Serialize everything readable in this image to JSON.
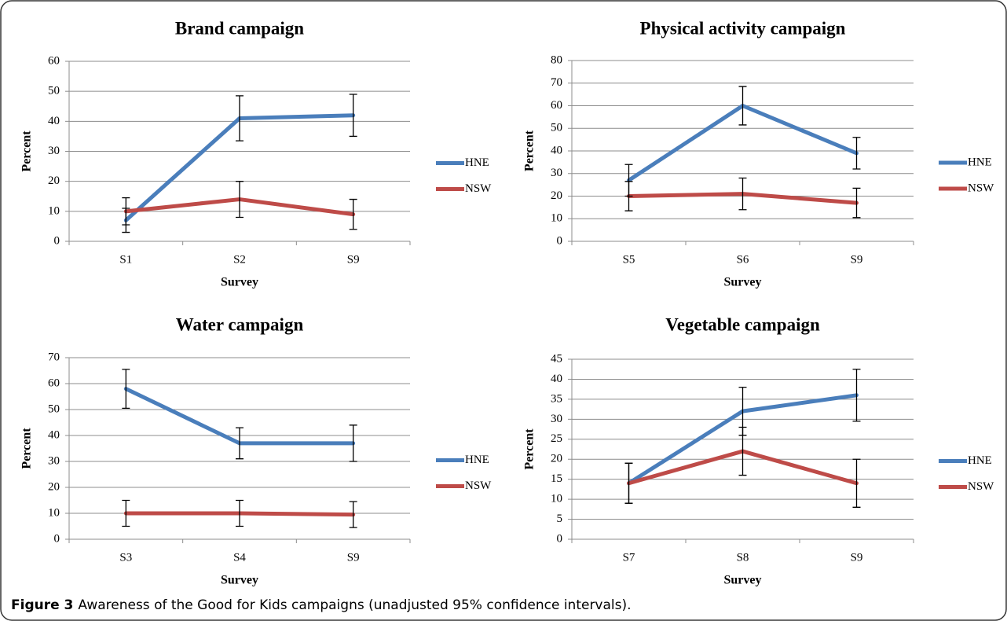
{
  "caption_label": "Figure 3",
  "caption_text": "Awareness of the Good for Kids campaigns (unadjusted 95% confidence intervals).",
  "chart_data": [
    {
      "type": "line",
      "title": "Brand campaign",
      "x_label": "Survey",
      "y_label": "Percent",
      "categories": [
        "S1",
        "S2",
        "S9"
      ],
      "ylim": [
        0,
        60
      ],
      "yticks": [
        0,
        10,
        20,
        30,
        40,
        50,
        60
      ],
      "grid": true,
      "series": [
        {
          "name": "HNE",
          "color": "#4a7ebb",
          "values": [
            7,
            41,
            42
          ],
          "errors": [
            4,
            7.5,
            7
          ]
        },
        {
          "name": "NSW",
          "color": "#be4b48",
          "values": [
            10,
            14,
            9
          ],
          "errors": [
            4.5,
            6,
            5
          ]
        }
      ]
    },
    {
      "type": "line",
      "title": "Physical activity campaign",
      "x_label": "Survey",
      "y_label": "Percent",
      "categories": [
        "S5",
        "S6",
        "S9"
      ],
      "ylim": [
        0,
        80
      ],
      "yticks": [
        0,
        10,
        20,
        30,
        40,
        50,
        60,
        70,
        80
      ],
      "grid": true,
      "series": [
        {
          "name": "HNE",
          "color": "#4a7ebb",
          "values": [
            27,
            60,
            39
          ],
          "errors": [
            7,
            8.5,
            7
          ]
        },
        {
          "name": "NSW",
          "color": "#be4b48",
          "values": [
            20,
            21,
            17
          ],
          "errors": [
            6.5,
            7,
            6.5
          ]
        }
      ]
    },
    {
      "type": "line",
      "title": "Water campaign",
      "x_label": "Survey",
      "y_label": "Percent",
      "categories": [
        "S3",
        "S4",
        "S9"
      ],
      "ylim": [
        0,
        70
      ],
      "yticks": [
        0,
        10,
        20,
        30,
        40,
        50,
        60,
        70
      ],
      "grid": true,
      "series": [
        {
          "name": "HNE",
          "color": "#4a7ebb",
          "values": [
            58,
            37,
            37
          ],
          "errors": [
            7.5,
            6,
            7
          ]
        },
        {
          "name": "NSW",
          "color": "#be4b48",
          "values": [
            10,
            10,
            9.5
          ],
          "errors": [
            5,
            5,
            5
          ]
        }
      ]
    },
    {
      "type": "line",
      "title": "Vegetable campaign",
      "x_label": "Survey",
      "y_label": "Percent",
      "categories": [
        "S7",
        "S8",
        "S9"
      ],
      "ylim": [
        0,
        45
      ],
      "yticks": [
        0,
        5,
        10,
        15,
        20,
        25,
        30,
        35,
        40,
        45
      ],
      "grid": true,
      "series": [
        {
          "name": "HNE",
          "color": "#4a7ebb",
          "values": [
            14,
            32,
            36
          ],
          "errors": [
            5,
            6,
            6.5
          ]
        },
        {
          "name": "NSW",
          "color": "#be4b48",
          "values": [
            14,
            22,
            14
          ],
          "errors": [
            5,
            6,
            6
          ]
        }
      ]
    }
  ]
}
